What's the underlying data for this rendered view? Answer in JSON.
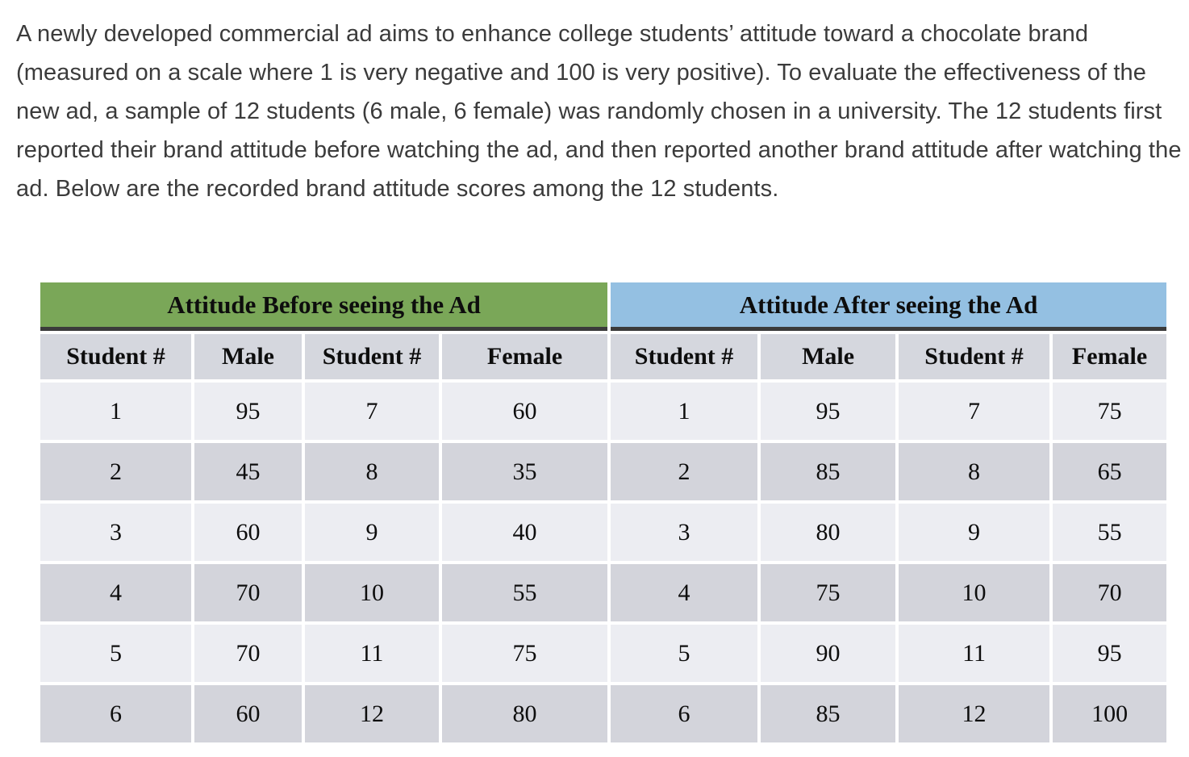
{
  "paragraph": "A newly developed commercial ad aims to enhance college students’ attitude toward a chocolate brand (measured on a scale where 1 is very negative and 100 is very positive). To evaluate the effectiveness of the new ad, a sample of 12 students (6 male, 6 female) was randomly chosen in a university. The 12 students first reported their brand attitude before watching the ad, and then reported another brand attitude after watching the ad. Below are the recorded brand attitude scores among the 12 students.",
  "table": {
    "section_before": "Attitude Before seeing the Ad",
    "section_after": "Attitude After seeing the Ad",
    "subheaders": [
      "Student #",
      "Male",
      "Student #",
      "Female",
      "Student #",
      "Male",
      "Student #",
      "Female"
    ],
    "rows": [
      [
        "1",
        "95",
        "7",
        "60",
        "1",
        "95",
        "7",
        "75"
      ],
      [
        "2",
        "45",
        "8",
        "35",
        "2",
        "85",
        "8",
        "65"
      ],
      [
        "3",
        "60",
        "9",
        "40",
        "3",
        "80",
        "9",
        "55"
      ],
      [
        "4",
        "70",
        "10",
        "55",
        "4",
        "75",
        "10",
        "70"
      ],
      [
        "5",
        "70",
        "11",
        "75",
        "5",
        "90",
        "11",
        "95"
      ],
      [
        "6",
        "60",
        "12",
        "80",
        "6",
        "85",
        "12",
        "100"
      ]
    ]
  },
  "colors": {
    "section_before_bg": "#7aa758",
    "section_after_bg": "#94c0e2",
    "subheader_bg": "#d5d7de",
    "row_light_bg": "#ecedf2",
    "row_dark_bg": "#d3d4db",
    "header_underline": "#3b3b3b"
  }
}
